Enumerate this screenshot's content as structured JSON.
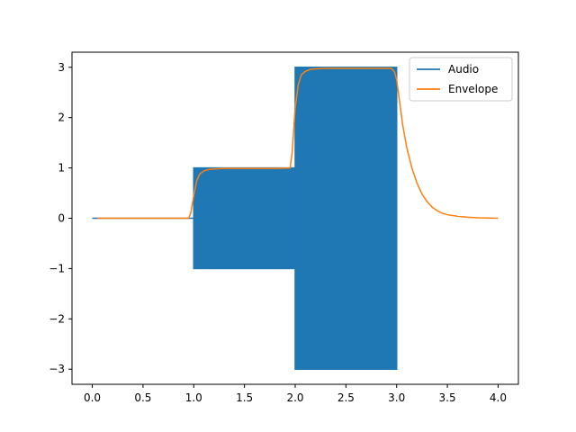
{
  "chart_data": {
    "type": "line",
    "title": "",
    "xlabel": "",
    "ylabel": "",
    "xlim": [
      -0.2,
      4.2
    ],
    "ylim": [
      -3.3,
      3.3
    ],
    "xticks": [
      0.0,
      0.5,
      1.0,
      1.5,
      2.0,
      2.5,
      3.0,
      3.5,
      4.0
    ],
    "xtick_labels": [
      "0.0",
      "0.5",
      "1.0",
      "1.5",
      "2.0",
      "2.5",
      "3.0",
      "3.5",
      "4.0"
    ],
    "yticks": [
      -3,
      -2,
      -1,
      0,
      1,
      2,
      3
    ],
    "ytick_labels": [
      "−3",
      "−2",
      "−1",
      "0",
      "1",
      "2",
      "3"
    ],
    "grid": false,
    "legend": {
      "placement": "upper-right",
      "entries": [
        "Audio",
        "Envelope"
      ]
    },
    "series": [
      {
        "name": "Audio",
        "color": "#1f77b4",
        "style": "dense oscillation (filled band)",
        "segments": [
          {
            "x_start": 0.0,
            "x_end": 1.0,
            "amplitude": 0
          },
          {
            "x_start": 1.0,
            "x_end": 2.0,
            "amplitude": 1
          },
          {
            "x_start": 2.0,
            "x_end": 3.0,
            "amplitude": 3
          }
        ]
      },
      {
        "name": "Envelope",
        "color": "#ff7f0e",
        "x": [
          0.05,
          0.5,
          0.95,
          0.97,
          1.0,
          1.03,
          1.06,
          1.1,
          1.15,
          1.2,
          1.3,
          1.5,
          1.8,
          1.95,
          1.97,
          2.0,
          2.03,
          2.06,
          2.1,
          2.15,
          2.2,
          2.3,
          2.5,
          2.8,
          2.95,
          2.98,
          3.0,
          3.03,
          3.06,
          3.1,
          3.15,
          3.2,
          3.25,
          3.3,
          3.35,
          3.4,
          3.45,
          3.5,
          3.6,
          3.7,
          3.8,
          3.9,
          4.0
        ],
        "y": [
          0.0,
          0.0,
          0.0,
          0.1,
          0.45,
          0.75,
          0.88,
          0.94,
          0.97,
          0.98,
          0.99,
          0.99,
          0.99,
          1.0,
          1.3,
          2.2,
          2.65,
          2.85,
          2.92,
          2.96,
          2.97,
          2.98,
          2.98,
          2.98,
          2.98,
          2.9,
          2.75,
          2.3,
          1.85,
          1.4,
          1.0,
          0.7,
          0.48,
          0.33,
          0.22,
          0.15,
          0.1,
          0.07,
          0.04,
          0.02,
          0.01,
          0.005,
          0.0
        ]
      }
    ]
  }
}
